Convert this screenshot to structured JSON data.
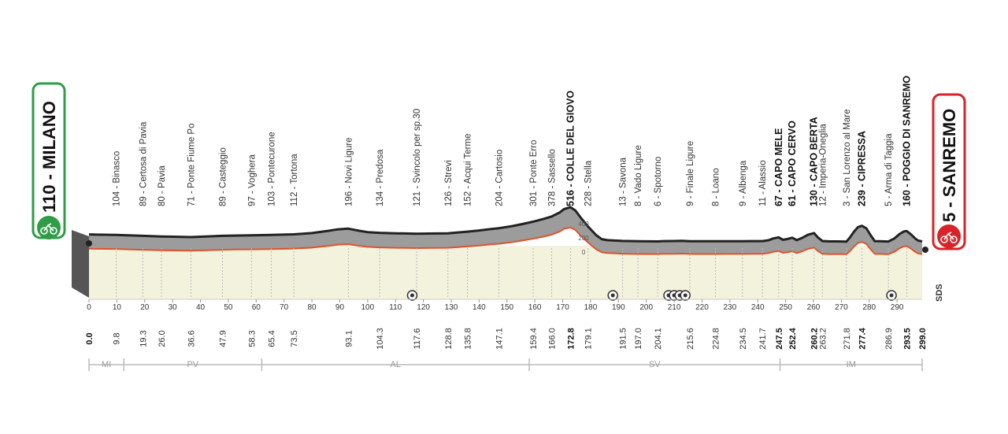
{
  "start": {
    "label": "110 - MILANO",
    "color": "#2e9d46"
  },
  "finish": {
    "label": "5 - SANREMO",
    "color": "#d8232a"
  },
  "logo_text": "SDS",
  "colors": {
    "profile_fill": "#9c9c9c",
    "profile_line": "#222222",
    "coast_line": "#e0522c",
    "plain": "#f3f2dc"
  },
  "total_km": 299,
  "waypoints": [
    {
      "label": "104 - Binasco",
      "km": 9.8,
      "climb": false
    },
    {
      "label": "89 - Certosa di Pavia",
      "km": 19.3,
      "climb": false
    },
    {
      "label": "80 - Pavia",
      "km": 26.0,
      "climb": false
    },
    {
      "label": "71 - Ponte Fiume Po",
      "km": 36.6,
      "climb": false
    },
    {
      "label": "89 - Casteggio",
      "km": 47.9,
      "climb": false
    },
    {
      "label": "97 - Voghera",
      "km": 58.3,
      "climb": false
    },
    {
      "label": "103 - Pontecurone",
      "km": 65.4,
      "climb": false
    },
    {
      "label": "112 - Tortona",
      "km": 73.5,
      "climb": false
    },
    {
      "label": "196 - Novi Ligure",
      "km": 93.1,
      "climb": false
    },
    {
      "label": "134 - Predosa",
      "km": 104.3,
      "climb": false
    },
    {
      "label": "121 - Svincolo per sp.30",
      "km": 117.6,
      "climb": false
    },
    {
      "label": "126 - Strevi",
      "km": 128.8,
      "climb": false
    },
    {
      "label": "152 - Acqui Terme",
      "km": 135.8,
      "climb": false
    },
    {
      "label": "204 - Cartosio",
      "km": 147.1,
      "climb": false
    },
    {
      "label": "301 - Ponte Erro",
      "km": 159.4,
      "climb": false
    },
    {
      "label": "378 - Sassello",
      "km": 166.0,
      "climb": false
    },
    {
      "label": "516 - COLLE DEL GIOVO",
      "km": 172.8,
      "climb": true
    },
    {
      "label": "228 - Stella",
      "km": 179.1,
      "climb": false
    },
    {
      "label": "13 - Savona",
      "km": 191.5,
      "climb": false
    },
    {
      "label": "8 - Vado Ligure",
      "km": 197.0,
      "climb": false
    },
    {
      "label": "6 - Spotorno",
      "km": 204.1,
      "climb": false
    },
    {
      "label": "9 - Finale Ligure",
      "km": 215.6,
      "climb": false
    },
    {
      "label": "8 - Loano",
      "km": 224.8,
      "climb": false
    },
    {
      "label": "9 - Albenga",
      "km": 234.5,
      "climb": false
    },
    {
      "label": "11 - Alassio",
      "km": 241.7,
      "climb": false
    },
    {
      "label": "67 - CAPO MELE",
      "km": 247.5,
      "climb": true
    },
    {
      "label": "61 - CAPO CERVO",
      "km": 252.4,
      "climb": true
    },
    {
      "label": "130 - CAPO BERTA",
      "km": 260.2,
      "climb": true
    },
    {
      "label": "12 - Imperia-Oneglia",
      "km": 263.2,
      "climb": false
    },
    {
      "label": "3 - San Lorenzo al Mare",
      "km": 271.8,
      "climb": false
    },
    {
      "label": "239 - CIPRESSA",
      "km": 277.4,
      "climb": true
    },
    {
      "label": "5 - Arma di Taggia",
      "km": 286.9,
      "climb": false
    },
    {
      "label": "160 - POGGIO DI SANREMO",
      "km": 293.5,
      "climb": true
    }
  ],
  "distances": [
    {
      "text": "0.0",
      "km": 0,
      "bold": true
    },
    {
      "text": "9.8",
      "km": 9.8,
      "bold": false
    },
    {
      "text": "19.3",
      "km": 19.3,
      "bold": false
    },
    {
      "text": "26.0",
      "km": 26.0,
      "bold": false
    },
    {
      "text": "36.6",
      "km": 36.6,
      "bold": false
    },
    {
      "text": "47.9",
      "km": 47.9,
      "bold": false
    },
    {
      "text": "58.3",
      "km": 58.3,
      "bold": false
    },
    {
      "text": "65.4",
      "km": 65.4,
      "bold": false
    },
    {
      "text": "73.5",
      "km": 73.5,
      "bold": false
    },
    {
      "text": "93.1",
      "km": 93.1,
      "bold": false
    },
    {
      "text": "104.3",
      "km": 104.3,
      "bold": false
    },
    {
      "text": "117.6",
      "km": 117.6,
      "bold": false
    },
    {
      "text": "128.8",
      "km": 128.8,
      "bold": false
    },
    {
      "text": "135.8",
      "km": 135.8,
      "bold": false
    },
    {
      "text": "147.1",
      "km": 147.1,
      "bold": false
    },
    {
      "text": "159.4",
      "km": 159.4,
      "bold": false
    },
    {
      "text": "166.0",
      "km": 166.0,
      "bold": false
    },
    {
      "text": "172.8",
      "km": 172.8,
      "bold": true
    },
    {
      "text": "179.1",
      "km": 179.1,
      "bold": false
    },
    {
      "text": "191.5",
      "km": 191.5,
      "bold": false
    },
    {
      "text": "197.0",
      "km": 197.0,
      "bold": false
    },
    {
      "text": "204.1",
      "km": 204.1,
      "bold": false
    },
    {
      "text": "215.6",
      "km": 215.6,
      "bold": false
    },
    {
      "text": "224.8",
      "km": 224.8,
      "bold": false
    },
    {
      "text": "234.5",
      "km": 234.5,
      "bold": false
    },
    {
      "text": "241.7",
      "km": 241.7,
      "bold": false
    },
    {
      "text": "247.5",
      "km": 247.5,
      "bold": true
    },
    {
      "text": "252.4",
      "km": 252.4,
      "bold": true
    },
    {
      "text": "260.2",
      "km": 260.2,
      "bold": true
    },
    {
      "text": "263.2",
      "km": 263.2,
      "bold": false
    },
    {
      "text": "271.8",
      "km": 271.8,
      "bold": false
    },
    {
      "text": "277.4",
      "km": 277.4,
      "bold": true
    },
    {
      "text": "286.9",
      "km": 286.9,
      "bold": false
    },
    {
      "text": "293.5",
      "km": 293.5,
      "bold": true
    },
    {
      "text": "299.0",
      "km": 299.0,
      "bold": true
    }
  ],
  "km_ticks": [
    "0",
    "10",
    "20",
    "30",
    "40",
    "50",
    "60",
    "70",
    "80",
    "90",
    "100",
    "110",
    "120",
    "130",
    "140",
    "150",
    "160",
    "170",
    "180",
    "190",
    "200",
    "210",
    "220",
    "230",
    "240",
    "250",
    "260",
    "270",
    "280",
    "290"
  ],
  "elevation_labels": [
    "400",
    "200",
    "0"
  ],
  "provinces": [
    {
      "code": "MI",
      "from": 0,
      "to": 12.5
    },
    {
      "code": "PV",
      "from": 12.5,
      "to": 62
    },
    {
      "code": "AL",
      "from": 62,
      "to": 158
    },
    {
      "code": "SV",
      "from": 158,
      "to": 248
    },
    {
      "code": "IM",
      "from": 248,
      "to": 299
    }
  ],
  "sprint_markers_km": [
    116,
    188,
    208,
    210,
    212,
    214,
    288
  ],
  "profile": [
    [
      0,
      110
    ],
    [
      5,
      106
    ],
    [
      9.8,
      104
    ],
    [
      15,
      95
    ],
    [
      19.3,
      89
    ],
    [
      26,
      80
    ],
    [
      30,
      76
    ],
    [
      36.6,
      71
    ],
    [
      42,
      80
    ],
    [
      47.9,
      89
    ],
    [
      52,
      93
    ],
    [
      58.3,
      97
    ],
    [
      65.4,
      103
    ],
    [
      73.5,
      112
    ],
    [
      80,
      130
    ],
    [
      86,
      165
    ],
    [
      89,
      185
    ],
    [
      93.1,
      196
    ],
    [
      97,
      165
    ],
    [
      100,
      145
    ],
    [
      104.3,
      134
    ],
    [
      110,
      127
    ],
    [
      117.6,
      121
    ],
    [
      122,
      123
    ],
    [
      128.8,
      126
    ],
    [
      132,
      138
    ],
    [
      135.8,
      152
    ],
    [
      140,
      170
    ],
    [
      144,
      190
    ],
    [
      147.1,
      204
    ],
    [
      152,
      235
    ],
    [
      156,
      270
    ],
    [
      159.4,
      301
    ],
    [
      163,
      340
    ],
    [
      166,
      378
    ],
    [
      169,
      440
    ],
    [
      170.5,
      490
    ],
    [
      172.8,
      516
    ],
    [
      174.5,
      470
    ],
    [
      176.5,
      360
    ],
    [
      179.1,
      228
    ],
    [
      182,
      100
    ],
    [
      184,
      40
    ],
    [
      186,
      25
    ],
    [
      191.5,
      13
    ],
    [
      197,
      8
    ],
    [
      204.1,
      6
    ],
    [
      206,
      10
    ],
    [
      210,
      12
    ],
    [
      213,
      15
    ],
    [
      215.6,
      9
    ],
    [
      220,
      8
    ],
    [
      224.8,
      8
    ],
    [
      230,
      9
    ],
    [
      234.5,
      9
    ],
    [
      238,
      10
    ],
    [
      241.7,
      11
    ],
    [
      244,
      25
    ],
    [
      245.5,
      50
    ],
    [
      247.5,
      67
    ],
    [
      249,
      30
    ],
    [
      250.5,
      40
    ],
    [
      252.4,
      61
    ],
    [
      254,
      25
    ],
    [
      256,
      60
    ],
    [
      258,
      105
    ],
    [
      260.2,
      130
    ],
    [
      261.5,
      70
    ],
    [
      263.2,
      12
    ],
    [
      266,
      6
    ],
    [
      269,
      6
    ],
    [
      271.8,
      3
    ],
    [
      273,
      60
    ],
    [
      274.5,
      150
    ],
    [
      276,
      220
    ],
    [
      277.4,
      239
    ],
    [
      279,
      200
    ],
    [
      280.5,
      100
    ],
    [
      282,
      10
    ],
    [
      286.9,
      5
    ],
    [
      289,
      50
    ],
    [
      291,
      120
    ],
    [
      292.5,
      155
    ],
    [
      293.5,
      160
    ],
    [
      295,
      110
    ],
    [
      296.5,
      50
    ],
    [
      297.5,
      20
    ],
    [
      299,
      5
    ]
  ]
}
